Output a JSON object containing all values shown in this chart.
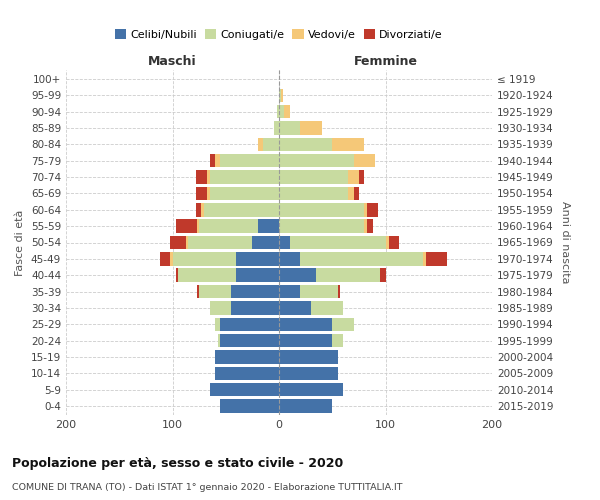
{
  "age_groups": [
    "0-4",
    "5-9",
    "10-14",
    "15-19",
    "20-24",
    "25-29",
    "30-34",
    "35-39",
    "40-44",
    "45-49",
    "50-54",
    "55-59",
    "60-64",
    "65-69",
    "70-74",
    "75-79",
    "80-84",
    "85-89",
    "90-94",
    "95-99",
    "100+"
  ],
  "birth_years": [
    "2015-2019",
    "2010-2014",
    "2005-2009",
    "2000-2004",
    "1995-1999",
    "1990-1994",
    "1985-1989",
    "1980-1984",
    "1975-1979",
    "1970-1974",
    "1965-1969",
    "1960-1964",
    "1955-1959",
    "1950-1954",
    "1945-1949",
    "1940-1944",
    "1935-1939",
    "1930-1934",
    "1925-1929",
    "1920-1924",
    "≤ 1919"
  ],
  "maschi": {
    "celibi": [
      55,
      65,
      60,
      60,
      55,
      55,
      45,
      45,
      40,
      40,
      25,
      20,
      0,
      0,
      0,
      0,
      0,
      0,
      0,
      0,
      0
    ],
    "coniugati": [
      0,
      0,
      0,
      0,
      2,
      5,
      20,
      30,
      55,
      60,
      60,
      55,
      70,
      65,
      65,
      55,
      15,
      5,
      2,
      0,
      0
    ],
    "vedovi": [
      0,
      0,
      0,
      0,
      0,
      0,
      0,
      0,
      0,
      2,
      2,
      2,
      3,
      3,
      3,
      5,
      5,
      0,
      0,
      0,
      0
    ],
    "divorziati": [
      0,
      0,
      0,
      0,
      0,
      0,
      0,
      2,
      2,
      10,
      15,
      20,
      5,
      10,
      10,
      5,
      0,
      0,
      0,
      0,
      0
    ]
  },
  "femmine": {
    "nubili": [
      50,
      60,
      55,
      55,
      50,
      50,
      30,
      20,
      35,
      20,
      10,
      0,
      0,
      0,
      0,
      0,
      0,
      0,
      0,
      0,
      0
    ],
    "coniugate": [
      0,
      0,
      0,
      0,
      10,
      20,
      30,
      35,
      60,
      115,
      90,
      80,
      80,
      65,
      65,
      70,
      50,
      20,
      5,
      2,
      0
    ],
    "vedove": [
      0,
      0,
      0,
      0,
      0,
      0,
      0,
      0,
      0,
      3,
      3,
      3,
      3,
      5,
      10,
      20,
      30,
      20,
      5,
      2,
      0
    ],
    "divorziate": [
      0,
      0,
      0,
      0,
      0,
      0,
      0,
      2,
      5,
      20,
      10,
      5,
      10,
      5,
      5,
      0,
      0,
      0,
      0,
      0,
      0
    ]
  },
  "colors": {
    "celibi": "#4472a8",
    "coniugati": "#c8dba0",
    "vedovi": "#f5c878",
    "divorziati": "#c0392b"
  },
  "xlim": [
    -200,
    200
  ],
  "xticks": [
    -200,
    -100,
    0,
    100,
    200
  ],
  "xticklabels": [
    "200",
    "100",
    "0",
    "100",
    "200"
  ],
  "title": "Popolazione per età, sesso e stato civile - 2020",
  "subtitle": "COMUNE DI TRANA (TO) - Dati ISTAT 1° gennaio 2020 - Elaborazione TUTTITALIA.IT",
  "ylabel_left": "Fasce di età",
  "ylabel_right": "Anni di nascita",
  "maschi_label": "Maschi",
  "femmine_label": "Femmine",
  "legend_labels": [
    "Celibi/Nubili",
    "Coniugati/e",
    "Vedovi/e",
    "Divorziati/e"
  ]
}
